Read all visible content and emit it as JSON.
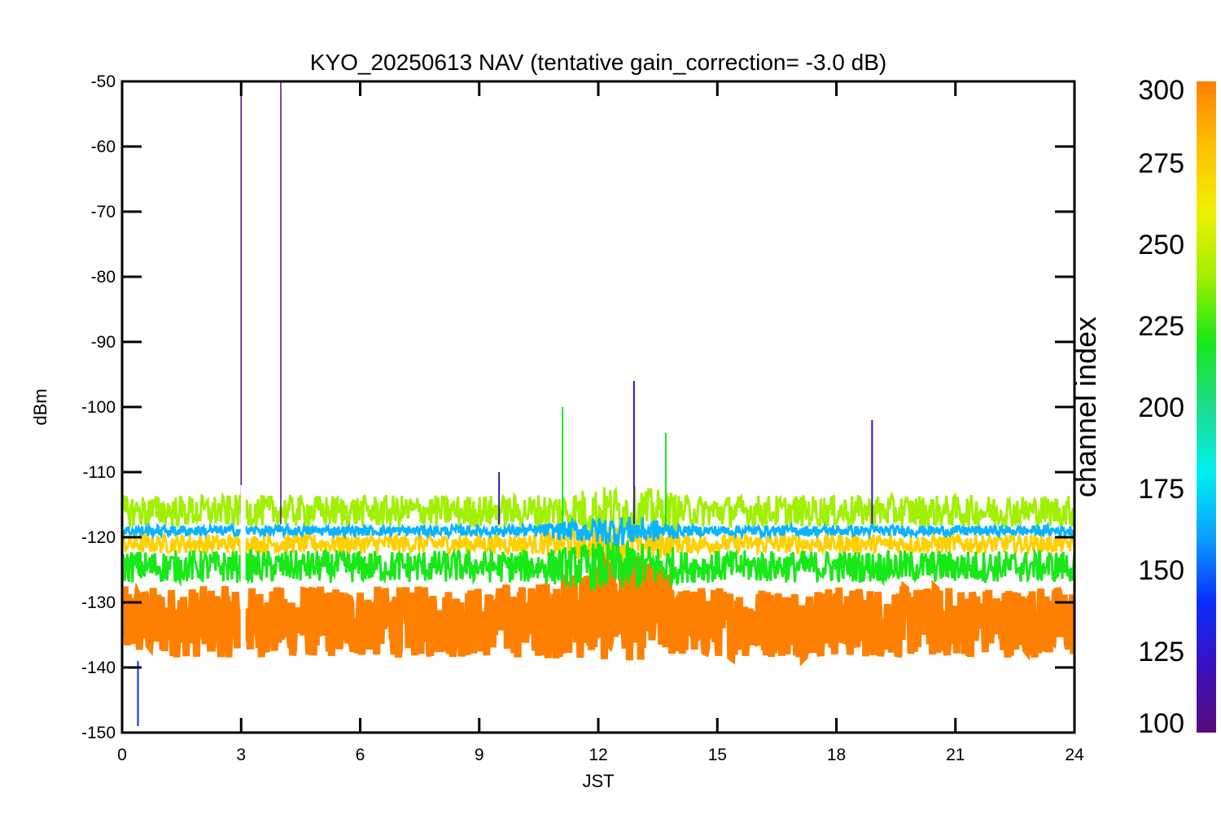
{
  "chart_data": {
    "type": "line",
    "title": "KYO_20250613 NAV (tentative gain_correction= -3.0 dB)",
    "xlabel": "JST",
    "ylabel": "dBm",
    "xlim": [
      0,
      24
    ],
    "ylim": [
      -150,
      -50
    ],
    "xticks": [
      0,
      3,
      6,
      9,
      12,
      15,
      18,
      21,
      24
    ],
    "yticks": [
      -50,
      -60,
      -70,
      -80,
      -90,
      -100,
      -110,
      -120,
      -130,
      -140,
      -150
    ],
    "grid": false,
    "colorbar": {
      "title": "channel index",
      "range": [
        100,
        300
      ],
      "ticks": [
        300,
        275,
        250,
        225,
        200,
        175,
        150,
        125,
        100
      ],
      "colormap": [
        "#5a0a7a",
        "#3c10c0",
        "#0a2cff",
        "#0aa0ff",
        "#00f0f0",
        "#1edc8c",
        "#18e818",
        "#a0f000",
        "#f0f000",
        "#ffc000",
        "#ff8000"
      ]
    },
    "series": [
      {
        "channel_index": 290,
        "color": "#ff8000",
        "band_center_dbm": -133,
        "band_halfwidth_db": 5.5
      },
      {
        "channel_index": 270,
        "color": "#ffd000",
        "band_center_dbm": -121,
        "band_halfwidth_db": 1.5
      },
      {
        "channel_index": 240,
        "color": "#18e818",
        "band_center_dbm": -124.5,
        "band_halfwidth_db": 2.5
      },
      {
        "channel_index": 255,
        "color": "#a0f000",
        "band_center_dbm": -116,
        "band_halfwidth_db": 2.5
      },
      {
        "channel_index": 180,
        "color": "#0ab4ff",
        "band_center_dbm": -119,
        "band_halfwidth_db": 0.8
      }
    ],
    "spikes": [
      {
        "x": 3.0,
        "y": -50,
        "color": "#5a0a7a"
      },
      {
        "x": 4.0,
        "y": -50,
        "color": "#5a0a7a"
      },
      {
        "x": 11.1,
        "y": -100,
        "color": "#18e818"
      },
      {
        "x": 12.9,
        "y": -96,
        "color": "#3c10c0"
      },
      {
        "x": 13.7,
        "y": -104,
        "color": "#18e818"
      },
      {
        "x": 18.9,
        "y": -102,
        "color": "#3c10c0"
      },
      {
        "x": 9.5,
        "y": -110,
        "color": "#3c10c0"
      },
      {
        "x": 0.4,
        "y": -149,
        "color": "#0a2cff"
      }
    ],
    "data_gap": {
      "x": 3.05
    }
  }
}
